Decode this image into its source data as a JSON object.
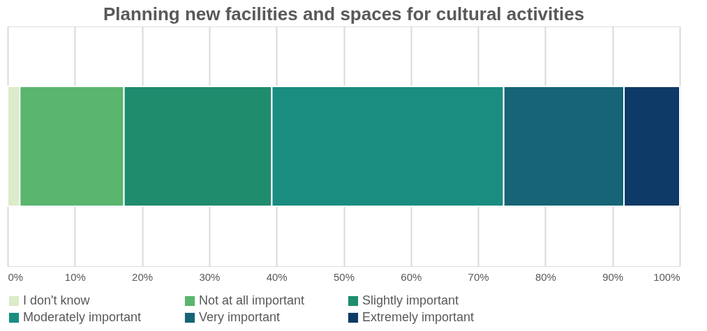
{
  "chart_data": {
    "type": "bar",
    "title": "Planning new facilities and spaces for cultural activities",
    "orientation": "horizontal",
    "stacked": true,
    "categories": [
      null
    ],
    "series": [
      {
        "name": "I don't know",
        "color": "#dcebc9",
        "values": [
          1.8
        ]
      },
      {
        "name": "Not at all important",
        "color": "#5ab56e",
        "values": [
          15.5
        ]
      },
      {
        "name": "Slightly important",
        "color": "#1f8c6e",
        "values": [
          22.0
        ]
      },
      {
        "name": "Moderately important",
        "color": "#1a8c80",
        "values": [
          34.5
        ]
      },
      {
        "name": "Very important",
        "color": "#166475",
        "values": [
          17.9
        ]
      },
      {
        "name": "Extremely important",
        "color": "#0d3a66",
        "values": [
          8.3
        ]
      }
    ],
    "xlim": [
      0,
      100
    ],
    "xticks": [
      {
        "value": 0,
        "label": "0%"
      },
      {
        "value": 10,
        "label": "10%"
      },
      {
        "value": 20,
        "label": "20%"
      },
      {
        "value": 30,
        "label": "30%"
      },
      {
        "value": 40,
        "label": "40%"
      },
      {
        "value": 50,
        "label": "50%"
      },
      {
        "value": 60,
        "label": "60%"
      },
      {
        "value": 70,
        "label": "70%"
      },
      {
        "value": 80,
        "label": "80%"
      },
      {
        "value": 90,
        "label": "90%"
      },
      {
        "value": 100,
        "label": "100%"
      }
    ],
    "grid": "x",
    "legend": "bottom",
    "tick_labels": "x"
  }
}
